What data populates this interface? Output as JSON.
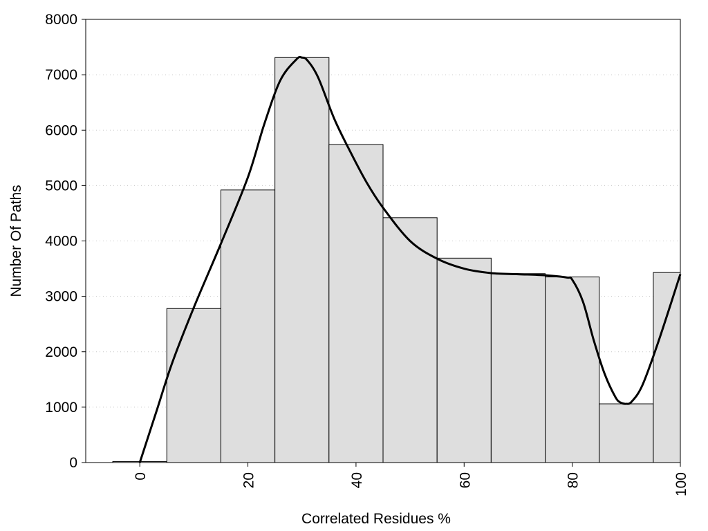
{
  "chart_data": {
    "type": "bar",
    "title": "",
    "xlabel": "Correlated Residues %",
    "ylabel": "Number Of Paths",
    "xlim": [
      -10,
      100
    ],
    "ylim": [
      0,
      8000
    ],
    "grid": true,
    "x_ticks": [
      "0",
      "20",
      "40",
      "60",
      "80",
      "100"
    ],
    "y_ticks": [
      "0",
      "1000",
      "2000",
      "3000",
      "4000",
      "5000",
      "6000",
      "7000",
      "8000"
    ],
    "bins": [
      {
        "center": 0,
        "value": 20
      },
      {
        "center": 10,
        "value": 2780
      },
      {
        "center": 20,
        "value": 4920
      },
      {
        "center": 30,
        "value": 7310
      },
      {
        "center": 40,
        "value": 5740
      },
      {
        "center": 50,
        "value": 4420
      },
      {
        "center": 60,
        "value": 3690
      },
      {
        "center": 70,
        "value": 3410
      },
      {
        "center": 80,
        "value": 3350
      },
      {
        "center": 90,
        "value": 1060
      },
      {
        "center": 100,
        "value": 3430
      }
    ],
    "curve": {
      "x": [
        0,
        3,
        6,
        10,
        15,
        20,
        23,
        26,
        29,
        30,
        31,
        33,
        36,
        39,
        42,
        45,
        50,
        55,
        60,
        65,
        70,
        75,
        79,
        80,
        82,
        84,
        86,
        88,
        89,
        90,
        91,
        93,
        96,
        100
      ],
      "y": [
        0,
        900,
        1800,
        2800,
        3950,
        5150,
        6100,
        6900,
        7280,
        7310,
        7260,
        6950,
        6200,
        5600,
        5050,
        4600,
        4000,
        3680,
        3500,
        3420,
        3400,
        3380,
        3340,
        3300,
        2900,
        2200,
        1600,
        1180,
        1080,
        1060,
        1100,
        1400,
        2200,
        3400
      ]
    },
    "colors": {
      "bar_fill": "#dedede",
      "line": "#000000"
    }
  }
}
